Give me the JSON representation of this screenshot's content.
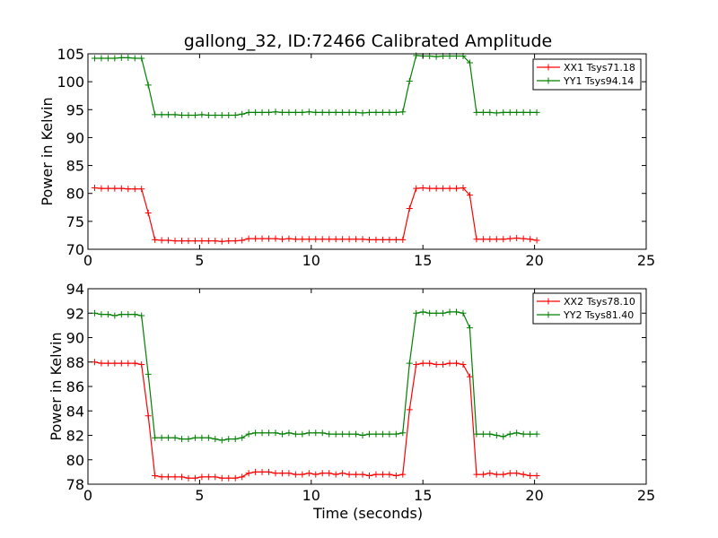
{
  "chart_data": [
    {
      "type": "line",
      "title": "gallong_32, ID:72466 Calibrated Amplitude",
      "xlabel": "",
      "ylabel": "Power in Kelvin",
      "xlim": [
        0,
        25
      ],
      "ylim": [
        70,
        105
      ],
      "xticks": [
        0,
        5,
        10,
        15,
        20,
        25
      ],
      "yticks": [
        70,
        75,
        80,
        85,
        90,
        95,
        100,
        105
      ],
      "grid": false,
      "legend_position": "top-right",
      "x": [
        0.3,
        0.6,
        0.9,
        1.2,
        1.5,
        1.8,
        2.1,
        2.4,
        2.7,
        3.0,
        3.3,
        3.6,
        3.9,
        4.2,
        4.5,
        4.8,
        5.1,
        5.4,
        5.7,
        6.0,
        6.3,
        6.6,
        6.9,
        7.2,
        7.5,
        7.8,
        8.1,
        8.4,
        8.7,
        9.0,
        9.3,
        9.6,
        9.9,
        10.2,
        10.5,
        10.8,
        11.1,
        11.4,
        11.7,
        12.0,
        12.3,
        12.6,
        12.9,
        13.2,
        13.5,
        13.8,
        14.1,
        14.4,
        14.7,
        15.0,
        15.3,
        15.6,
        15.9,
        16.2,
        16.5,
        16.8,
        17.1,
        17.4,
        17.7,
        18.0,
        18.3,
        18.6,
        18.9,
        19.2,
        19.5,
        19.8,
        20.1
      ],
      "series": [
        {
          "name": "XX1 Tsys71.18",
          "color": "#ff0000",
          "values": [
            81.0,
            80.9,
            80.9,
            80.9,
            80.9,
            80.8,
            80.8,
            80.8,
            76.5,
            71.7,
            71.6,
            71.6,
            71.5,
            71.5,
            71.5,
            71.5,
            71.5,
            71.5,
            71.5,
            71.4,
            71.5,
            71.5,
            71.6,
            71.9,
            71.9,
            71.9,
            71.9,
            71.9,
            71.8,
            71.9,
            71.8,
            71.8,
            71.8,
            71.8,
            71.8,
            71.8,
            71.8,
            71.8,
            71.8,
            71.8,
            71.8,
            71.7,
            71.7,
            71.7,
            71.7,
            71.7,
            71.7,
            77.3,
            80.9,
            81.0,
            80.9,
            80.9,
            80.9,
            80.9,
            80.9,
            81.0,
            79.7,
            71.8,
            71.8,
            71.8,
            71.8,
            71.8,
            71.9,
            72.0,
            71.9,
            71.8,
            71.6
          ]
        },
        {
          "name": "YY1 Tsys94.14",
          "color": "#008000",
          "values": [
            104.2,
            104.2,
            104.2,
            104.2,
            104.3,
            104.3,
            104.2,
            104.2,
            99.4,
            94.1,
            94.1,
            94.1,
            94.1,
            94.0,
            94.0,
            94.0,
            94.1,
            94.0,
            94.0,
            94.0,
            94.0,
            94.0,
            94.2,
            94.5,
            94.5,
            94.5,
            94.5,
            94.6,
            94.5,
            94.5,
            94.5,
            94.5,
            94.6,
            94.5,
            94.5,
            94.5,
            94.5,
            94.5,
            94.5,
            94.5,
            94.4,
            94.5,
            94.5,
            94.5,
            94.5,
            94.5,
            94.6,
            100.1,
            104.7,
            104.6,
            104.6,
            104.5,
            104.6,
            104.6,
            104.6,
            104.6,
            103.4,
            94.5,
            94.5,
            94.5,
            94.4,
            94.5,
            94.5,
            94.5,
            94.5,
            94.5,
            94.5
          ]
        }
      ]
    },
    {
      "type": "line",
      "title": "",
      "xlabel": "Time (seconds)",
      "ylabel": "Power in Kelvin",
      "xlim": [
        0,
        25
      ],
      "ylim": [
        78,
        94
      ],
      "xticks": [
        0,
        5,
        10,
        15,
        20,
        25
      ],
      "yticks": [
        78,
        80,
        82,
        84,
        86,
        88,
        90,
        92,
        94
      ],
      "grid": false,
      "legend_position": "top-right",
      "x": [
        0.3,
        0.6,
        0.9,
        1.2,
        1.5,
        1.8,
        2.1,
        2.4,
        2.7,
        3.0,
        3.3,
        3.6,
        3.9,
        4.2,
        4.5,
        4.8,
        5.1,
        5.4,
        5.7,
        6.0,
        6.3,
        6.6,
        6.9,
        7.2,
        7.5,
        7.8,
        8.1,
        8.4,
        8.7,
        9.0,
        9.3,
        9.6,
        9.9,
        10.2,
        10.5,
        10.8,
        11.1,
        11.4,
        11.7,
        12.0,
        12.3,
        12.6,
        12.9,
        13.2,
        13.5,
        13.8,
        14.1,
        14.4,
        14.7,
        15.0,
        15.3,
        15.6,
        15.9,
        16.2,
        16.5,
        16.8,
        17.1,
        17.4,
        17.7,
        18.0,
        18.3,
        18.6,
        18.9,
        19.2,
        19.5,
        19.8,
        20.1
      ],
      "series": [
        {
          "name": "XX2 Tsys78.10",
          "color": "#ff0000",
          "values": [
            88.0,
            87.9,
            87.9,
            87.9,
            87.9,
            87.9,
            87.9,
            87.8,
            83.6,
            78.7,
            78.6,
            78.6,
            78.6,
            78.6,
            78.5,
            78.5,
            78.6,
            78.6,
            78.6,
            78.5,
            78.5,
            78.5,
            78.6,
            78.9,
            79.0,
            79.0,
            79.0,
            78.9,
            78.9,
            78.9,
            78.8,
            78.8,
            78.9,
            78.8,
            78.9,
            78.9,
            78.8,
            78.9,
            78.8,
            78.8,
            78.8,
            78.7,
            78.8,
            78.8,
            78.8,
            78.7,
            78.8,
            84.1,
            87.8,
            87.9,
            87.9,
            87.8,
            87.8,
            87.9,
            87.9,
            87.8,
            86.8,
            78.8,
            78.8,
            78.9,
            78.8,
            78.8,
            78.9,
            78.9,
            78.8,
            78.7,
            78.7
          ]
        },
        {
          "name": "YY2 Tsys81.40",
          "color": "#008000",
          "values": [
            92.0,
            91.9,
            91.9,
            91.8,
            91.9,
            91.9,
            91.9,
            91.8,
            87.0,
            81.8,
            81.8,
            81.8,
            81.8,
            81.7,
            81.7,
            81.8,
            81.8,
            81.8,
            81.7,
            81.6,
            81.7,
            81.7,
            81.8,
            82.1,
            82.2,
            82.2,
            82.2,
            82.2,
            82.1,
            82.2,
            82.1,
            82.1,
            82.2,
            82.2,
            82.2,
            82.1,
            82.1,
            82.1,
            82.1,
            82.1,
            82.0,
            82.1,
            82.1,
            82.1,
            82.1,
            82.1,
            82.2,
            87.9,
            92.0,
            92.1,
            92.0,
            92.0,
            92.0,
            92.1,
            92.1,
            92.0,
            90.8,
            82.1,
            82.1,
            82.1,
            82.0,
            81.9,
            82.1,
            82.2,
            82.1,
            82.1,
            82.1
          ]
        }
      ]
    }
  ]
}
